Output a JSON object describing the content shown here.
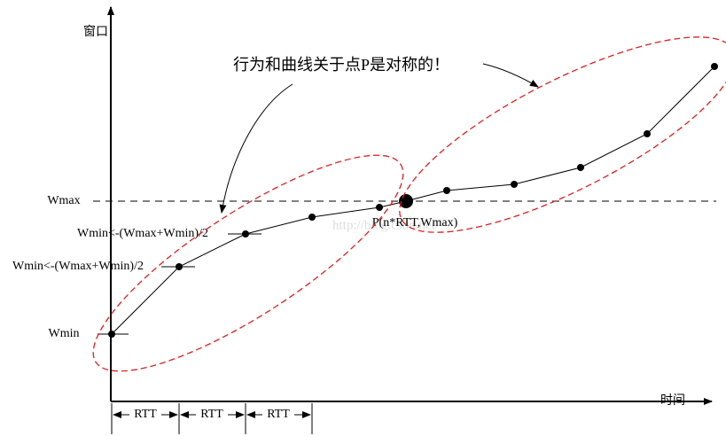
{
  "axes": {
    "y_label": "窗口",
    "x_label": "时间"
  },
  "levels": {
    "wmax": "Wmax",
    "wmin": "Wmin",
    "update_1": "Wmin<-(Wmax+Wmin)/2",
    "update_2": "Wmin<-(Wmax+Wmin)/2"
  },
  "rtt": [
    "RTT",
    "RTT",
    "RTT"
  ],
  "point_label": "P(n*RTT,Wmax)",
  "annotation": "行为和曲线关于点P是对称的！",
  "watermark": "http://blog.csdn.net/"
}
